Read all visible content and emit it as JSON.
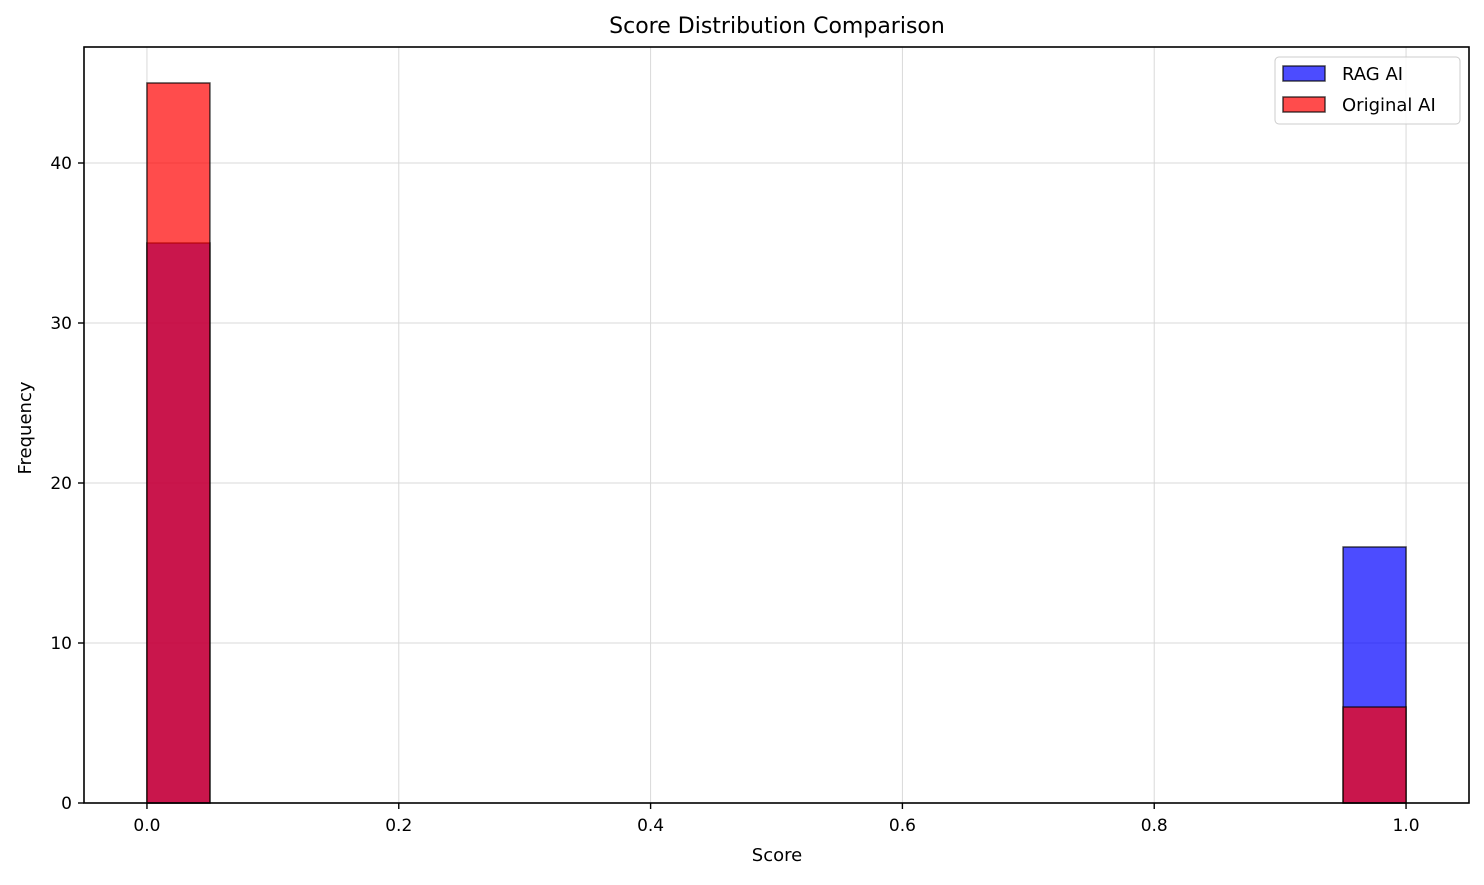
{
  "chart_data": {
    "type": "bar",
    "subtype": "overlaid-histogram",
    "title": "Score Distribution Comparison",
    "xlabel": "Score",
    "ylabel": "Frequency",
    "xlim": [
      -0.05,
      1.05
    ],
    "ylim": [
      0,
      47.25
    ],
    "xticks": [
      0.0,
      0.2,
      0.4,
      0.6,
      0.8,
      1.0
    ],
    "xtick_labels": [
      "0.0",
      "0.2",
      "0.4",
      "0.6",
      "0.8",
      "1.0"
    ],
    "yticks": [
      0,
      10,
      20,
      30,
      40
    ],
    "ytick_labels": [
      "0",
      "10",
      "20",
      "30",
      "40"
    ],
    "grid": true,
    "legend_position": "top-right",
    "bin_width": 0.05,
    "series": [
      {
        "name": "RAG AI",
        "color": "#0000ff",
        "opacity": 0.7,
        "bins": [
          {
            "start": 0.0,
            "end": 0.05,
            "count": 35
          },
          {
            "start": 0.95,
            "end": 1.0,
            "count": 16
          }
        ]
      },
      {
        "name": "Original AI",
        "color": "#ff0000",
        "opacity": 0.7,
        "bins": [
          {
            "start": 0.0,
            "end": 0.05,
            "count": 45
          },
          {
            "start": 0.95,
            "end": 1.0,
            "count": 6
          }
        ]
      }
    ]
  }
}
